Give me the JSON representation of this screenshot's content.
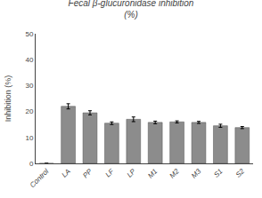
{
  "chart_data": {
    "type": "bar",
    "title": "Fecal β-glucuronidase inhibition\n(%)",
    "ylabel": "Inhibition (%)",
    "categories": [
      "Control",
      "LA",
      "PP",
      "LF",
      "LP",
      "M1",
      "M2",
      "M3",
      "S1",
      "S2"
    ],
    "values": [
      0,
      22.0,
      19.5,
      15.5,
      17.0,
      15.8,
      16.0,
      15.8,
      14.5,
      13.8
    ],
    "errors": [
      0,
      1.0,
      0.8,
      0.5,
      0.9,
      0.5,
      0.4,
      0.4,
      0.6,
      0.4
    ],
    "color": "#8c8c8c",
    "ylim": [
      0,
      50
    ],
    "yticks": [
      0,
      10,
      20,
      30,
      40,
      50
    ],
    "grid": false
  }
}
